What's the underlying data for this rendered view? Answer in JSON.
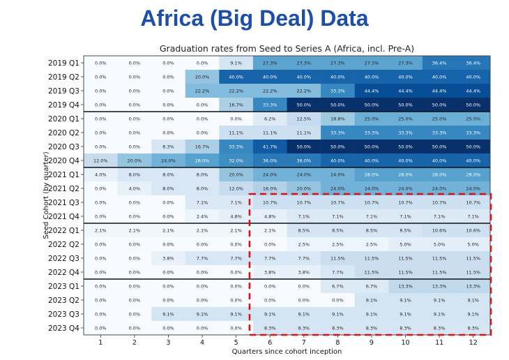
{
  "page_title": "Africa (Big Deal) Data",
  "chart_data": {
    "type": "heatmap",
    "title": "Graduation rates from Seed to Series A (Africa, incl. Pre-A)",
    "xlabel": "Quarters since cohort inception",
    "ylabel": "Seed Cohort (by quarter)",
    "x": [
      "1",
      "2",
      "3",
      "4",
      "5",
      "6",
      "7",
      "8",
      "9",
      "10",
      "11",
      "12"
    ],
    "y": [
      "2019 Q1",
      "2019 Q2",
      "2019 Q3",
      "2019 Q4",
      "2020 Q1",
      "2020 Q2",
      "2020 Q3",
      "2020 Q4",
      "2021 Q1",
      "2021 Q2",
      "2021 Q3",
      "2021 Q4",
      "2022 Q1",
      "2022 Q2",
      "2022 Q3",
      "2022 Q4",
      "2023 Q1",
      "2023 Q2",
      "2023 Q3",
      "2023 Q4"
    ],
    "values": [
      [
        0.0,
        0.0,
        0.0,
        0.0,
        9.1,
        27.3,
        27.3,
        27.3,
        27.3,
        27.3,
        36.4,
        36.4
      ],
      [
        0.0,
        0.0,
        0.0,
        20.0,
        40.0,
        40.0,
        40.0,
        40.0,
        40.0,
        40.0,
        40.0,
        40.0
      ],
      [
        0.0,
        0.0,
        0.0,
        22.2,
        22.2,
        22.2,
        22.2,
        33.3,
        44.4,
        44.4,
        44.4,
        44.4
      ],
      [
        0.0,
        0.0,
        0.0,
        0.0,
        16.7,
        33.3,
        50.0,
        50.0,
        50.0,
        50.0,
        50.0,
        50.0
      ],
      [
        0.0,
        0.0,
        0.0,
        0.0,
        0.0,
        6.2,
        12.5,
        18.8,
        25.0,
        25.0,
        25.0,
        25.0
      ],
      [
        0.0,
        0.0,
        0.0,
        0.0,
        11.1,
        11.1,
        11.1,
        33.3,
        33.3,
        33.3,
        33.3,
        33.3
      ],
      [
        0.0,
        0.0,
        8.3,
        16.7,
        33.3,
        41.7,
        50.0,
        50.0,
        50.0,
        50.0,
        50.0,
        50.0
      ],
      [
        12.0,
        20.0,
        24.0,
        28.0,
        32.0,
        36.0,
        36.0,
        40.0,
        40.0,
        40.0,
        40.0,
        40.0
      ],
      [
        4.0,
        8.0,
        8.0,
        8.0,
        20.0,
        24.0,
        24.0,
        24.0,
        28.0,
        28.0,
        28.0,
        28.0
      ],
      [
        0.0,
        4.0,
        8.0,
        8.0,
        12.0,
        16.0,
        20.0,
        24.0,
        24.0,
        24.0,
        24.0,
        24.0
      ],
      [
        0.0,
        0.0,
        0.0,
        7.1,
        7.1,
        10.7,
        10.7,
        10.7,
        10.7,
        10.7,
        10.7,
        10.7
      ],
      [
        0.0,
        0.0,
        0.0,
        2.4,
        4.8,
        4.8,
        7.1,
        7.1,
        7.1,
        7.1,
        7.1,
        7.1
      ],
      [
        2.1,
        2.1,
        2.1,
        2.1,
        2.1,
        2.1,
        8.5,
        8.5,
        8.5,
        8.5,
        10.6,
        10.6
      ],
      [
        0.0,
        0.0,
        0.0,
        0.0,
        0.0,
        0.0,
        2.5,
        2.5,
        2.5,
        5.0,
        5.0,
        5.0
      ],
      [
        0.0,
        0.0,
        3.8,
        7.7,
        7.7,
        7.7,
        7.7,
        11.5,
        11.5,
        11.5,
        11.5,
        11.5
      ],
      [
        0.0,
        0.0,
        0.0,
        0.0,
        0.0,
        3.8,
        3.8,
        7.7,
        11.5,
        11.5,
        11.5,
        11.5
      ],
      [
        0.0,
        0.0,
        0.0,
        0.0,
        0.0,
        0.0,
        0.0,
        6.7,
        6.7,
        13.3,
        13.3,
        13.3
      ],
      [
        0.0,
        0.0,
        0.0,
        0.0,
        0.0,
        0.0,
        0.0,
        0.0,
        9.1,
        9.1,
        9.1,
        9.1
      ],
      [
        0.0,
        0.0,
        9.1,
        9.1,
        9.1,
        9.1,
        9.1,
        9.1,
        9.1,
        9.1,
        9.1,
        9.1
      ],
      [
        0.0,
        0.0,
        0.0,
        0.0,
        0.0,
        8.3,
        8.3,
        8.3,
        8.3,
        8.3,
        8.3,
        8.3
      ]
    ],
    "value_suffix": "%",
    "colormap": "Blues",
    "color_range": [
      0,
      50
    ],
    "year_separators_after_rows": [
      "2019 Q4",
      "2020 Q4",
      "2021 Q4",
      "2022 Q4"
    ],
    "highlight_box": {
      "rows": [
        "2021 Q3",
        "2023 Q4"
      ],
      "columns": [
        "6",
        "12"
      ],
      "style": "red dashed",
      "color": "#e01010"
    }
  }
}
